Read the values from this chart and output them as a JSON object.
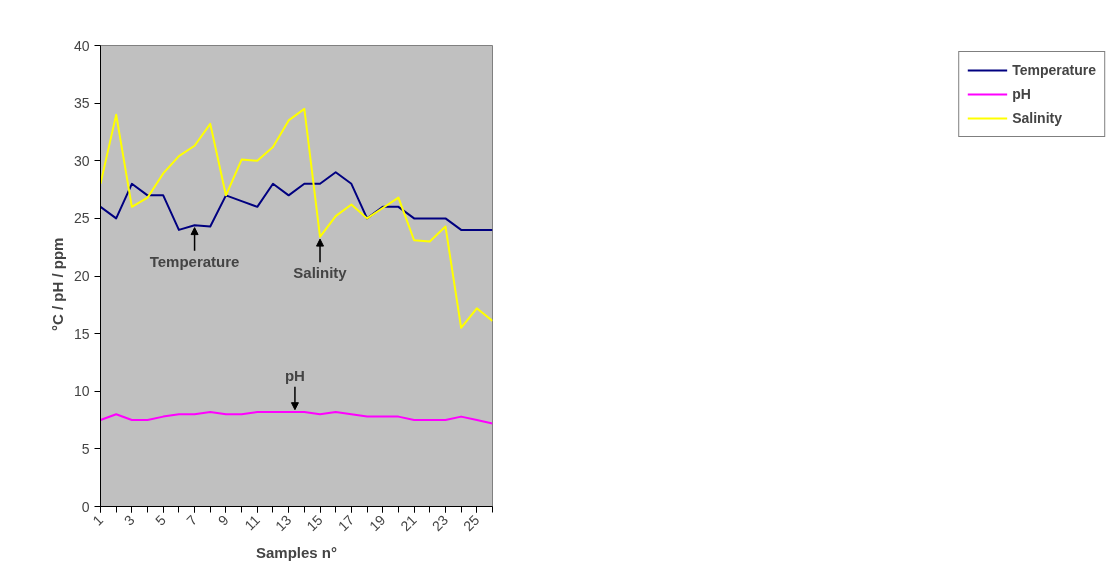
{
  "chart_data": {
    "type": "line",
    "xlabel": "Samples n°",
    "ylabel": "°C  /  pH  /  ppm",
    "x": [
      1,
      2,
      3,
      4,
      5,
      6,
      7,
      8,
      9,
      10,
      11,
      12,
      13,
      14,
      15,
      16,
      17,
      18,
      19,
      20,
      21,
      22,
      23,
      24,
      25,
      26
    ],
    "xlim": [
      1,
      26
    ],
    "xticks": [
      1,
      3,
      5,
      7,
      9,
      11,
      13,
      15,
      17,
      19,
      21,
      23,
      25
    ],
    "ylim": [
      0,
      40
    ],
    "yticks": [
      0,
      5,
      10,
      15,
      20,
      25,
      30,
      35,
      40
    ],
    "series": [
      {
        "name": "Temperature",
        "color": "#000080",
        "values": [
          26,
          25,
          28,
          27,
          27,
          24,
          24.4,
          24.3,
          27,
          26.5,
          26,
          28,
          27,
          28,
          28,
          29,
          28,
          25,
          26,
          26,
          25,
          25,
          25,
          24,
          24,
          24
        ]
      },
      {
        "name": "pH",
        "color": "#ff00ff",
        "values": [
          7.5,
          8,
          7.5,
          7.5,
          7.8,
          8,
          8,
          8.2,
          8,
          8,
          8.2,
          8.2,
          8.2,
          8.2,
          8,
          8.2,
          8,
          7.8,
          7.8,
          7.8,
          7.5,
          7.5,
          7.5,
          7.8,
          7.5,
          7.2
        ]
      },
      {
        "name": "Salinity",
        "color": "#ffff00",
        "values": [
          28,
          34,
          26,
          26.8,
          28.9,
          30.4,
          31.3,
          33.2,
          27,
          30.1,
          30,
          31.2,
          33.5,
          34.5,
          23.4,
          25.2,
          26.2,
          25,
          25.9,
          26.8,
          23.1,
          23,
          24.3,
          15.5,
          17.2,
          16.1
        ]
      }
    ],
    "annotations": [
      {
        "text": "Temperature",
        "x": 7,
        "y": 24.4
      },
      {
        "text": "Salinity",
        "x": 15,
        "y": 23.4
      },
      {
        "text": "pH",
        "x": 13.4,
        "y": 8.2
      }
    ],
    "grid": false,
    "legend": "right",
    "marker": "none",
    "line_style": "solid"
  }
}
